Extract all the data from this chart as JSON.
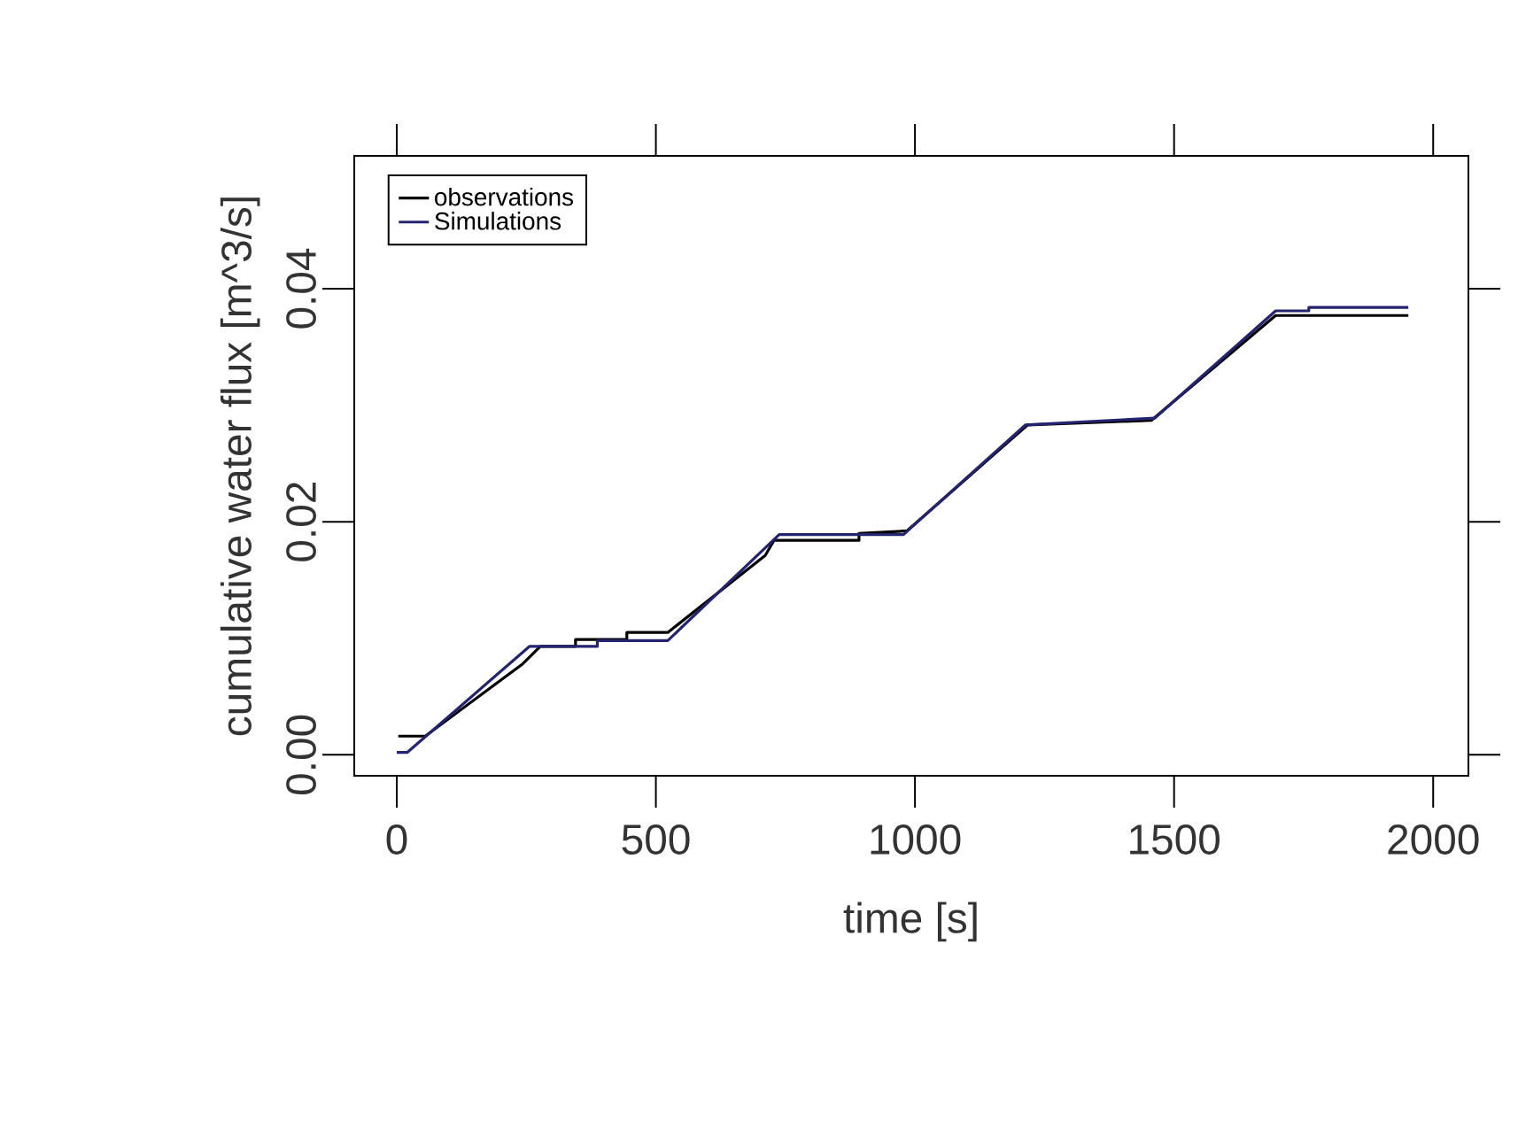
{
  "chart_data": {
    "type": "line",
    "xlabel": "time [s]",
    "ylabel": "cumulative water flux [m^3/s]",
    "xlim": [
      -82,
      2068
    ],
    "ylim": [
      -0.0018,
      0.0514
    ],
    "xticks": [
      0,
      500,
      1000,
      1500,
      2000
    ],
    "yticks": [
      {
        "value": 0,
        "label": "0.00"
      },
      {
        "value": 0.02,
        "label": "0.02"
      },
      {
        "value": 0.04,
        "label": "0.04"
      }
    ],
    "legend": "top left",
    "grid": false,
    "marker": "none",
    "line_style": "solid",
    "series": [
      {
        "name": "observations",
        "color": "#000000",
        "x": [
          3,
          55,
          243,
          277,
          345,
          345,
          444,
          444,
          523,
          711,
          728,
          892,
          892,
          978,
          984,
          1217,
          1456,
          1696,
          1952
        ],
        "values": [
          0.0016,
          0.0016,
          0.0078,
          0.0093,
          0.0093,
          0.0099,
          0.0099,
          0.0105,
          0.0105,
          0.0171,
          0.0184,
          0.0184,
          0.019,
          0.0192,
          0.0192,
          0.0283,
          0.0287,
          0.0377,
          0.0377
        ]
      },
      {
        "name": "Simulations",
        "color": "#24246e",
        "x": [
          0,
          20,
          256,
          387,
          387,
          523,
          738,
          978,
          990,
          1213,
          1463,
          1696,
          1760,
          1760,
          1952
        ],
        "values": [
          0.0002,
          0.0002,
          0.0093,
          0.0093,
          0.0098,
          0.0098,
          0.0189,
          0.0189,
          0.0194,
          0.0283,
          0.0289,
          0.0381,
          0.0381,
          0.0384,
          0.0384
        ]
      }
    ]
  }
}
